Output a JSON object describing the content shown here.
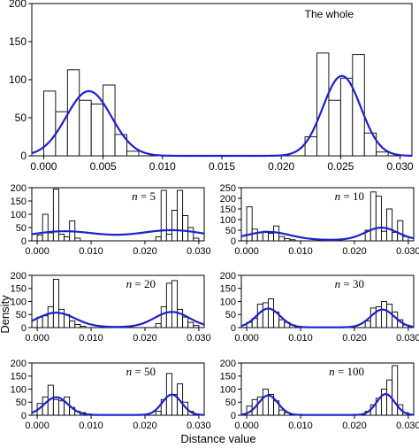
{
  "chart_data": {
    "type": "bar",
    "xlabel": "Distance value",
    "ylabel": "Density",
    "panels": [
      {
        "id": "whole",
        "annotation": {
          "prefix": "",
          "italic": "",
          "text": "The whole"
        },
        "xlim": [
          -0.001,
          0.031
        ],
        "ylim": [
          0,
          200
        ],
        "yticks": [
          0,
          50,
          100,
          150,
          200
        ],
        "xticks": [
          0.0,
          0.005,
          0.01,
          0.015,
          0.02,
          0.025,
          0.03
        ],
        "xtick_labels": [
          "0.000",
          "0.005",
          "0.010",
          "0.015",
          "0.020",
          "0.025",
          "0.030"
        ],
        "bin_width": 0.001,
        "bars": [
          {
            "x": 0.0,
            "y": 85
          },
          {
            "x": 0.001,
            "y": 58
          },
          {
            "x": 0.002,
            "y": 113
          },
          {
            "x": 0.003,
            "y": 73
          },
          {
            "x": 0.004,
            "y": 68
          },
          {
            "x": 0.005,
            "y": 93
          },
          {
            "x": 0.006,
            "y": 28
          },
          {
            "x": 0.007,
            "y": 6
          },
          {
            "x": 0.022,
            "y": 25
          },
          {
            "x": 0.023,
            "y": 135
          },
          {
            "x": 0.024,
            "y": 73
          },
          {
            "x": 0.025,
            "y": 102
          },
          {
            "x": 0.026,
            "y": 133
          },
          {
            "x": 0.027,
            "y": 30
          },
          {
            "x": 0.028,
            "y": 5
          }
        ],
        "density": {
          "peaks": [
            {
              "mu": 0.0038,
              "sd": 0.0019,
              "h": 85
            },
            {
              "mu": 0.0251,
              "sd": 0.0016,
              "h": 105
            }
          ]
        }
      },
      {
        "id": "n5",
        "annotation": {
          "prefix": "",
          "italic": "n",
          "text": " = 5"
        },
        "xlim": [
          -0.001,
          0.031
        ],
        "ylim": [
          0,
          200
        ],
        "yticks": [
          0,
          50,
          100,
          150,
          200
        ],
        "xticks": [
          0.0,
          0.01,
          0.02,
          0.03
        ],
        "xtick_labels": [
          "0.000",
          "0.010",
          "0.020",
          "0.030"
        ],
        "bin_width": 0.001,
        "bars": [
          {
            "x": 0.0,
            "y": 22
          },
          {
            "x": 0.001,
            "y": 100
          },
          {
            "x": 0.002,
            "y": 30
          },
          {
            "x": 0.003,
            "y": 195
          },
          {
            "x": 0.004,
            "y": 25
          },
          {
            "x": 0.005,
            "y": 15
          },
          {
            "x": 0.006,
            "y": 75
          },
          {
            "x": 0.007,
            "y": 10
          },
          {
            "x": 0.022,
            "y": 15
          },
          {
            "x": 0.023,
            "y": 190
          },
          {
            "x": 0.024,
            "y": 25
          },
          {
            "x": 0.025,
            "y": 115
          },
          {
            "x": 0.026,
            "y": 190
          },
          {
            "x": 0.027,
            "y": 95
          },
          {
            "x": 0.028,
            "y": 50
          },
          {
            "x": 0.029,
            "y": 10
          }
        ],
        "density": {
          "peaks": [
            {
              "mu": 0.005,
              "sd": 0.006,
              "h": 28
            },
            {
              "mu": 0.025,
              "sd": 0.006,
              "h": 32
            }
          ],
          "base": 8
        }
      },
      {
        "id": "n10",
        "annotation": {
          "prefix": "",
          "italic": "n",
          "text": " = 10"
        },
        "xlim": [
          -0.001,
          0.031
        ],
        "ylim": [
          0,
          250
        ],
        "yticks": [
          0,
          50,
          100,
          150,
          200,
          250
        ],
        "xticks": [
          0.0,
          0.01,
          0.02,
          0.03
        ],
        "xtick_labels": [
          "0.000",
          "0.010",
          "0.020",
          "0.030"
        ],
        "bin_width": 0.001,
        "bars": [
          {
            "x": 0.0,
            "y": 160
          },
          {
            "x": 0.001,
            "y": 55
          },
          {
            "x": 0.002,
            "y": 40
          },
          {
            "x": 0.003,
            "y": 45
          },
          {
            "x": 0.004,
            "y": 35
          },
          {
            "x": 0.005,
            "y": 70
          },
          {
            "x": 0.006,
            "y": 20
          },
          {
            "x": 0.007,
            "y": 10
          },
          {
            "x": 0.008,
            "y": 5
          },
          {
            "x": 0.022,
            "y": 50
          },
          {
            "x": 0.023,
            "y": 230
          },
          {
            "x": 0.024,
            "y": 210
          },
          {
            "x": 0.025,
            "y": 45
          },
          {
            "x": 0.026,
            "y": 150
          },
          {
            "x": 0.027,
            "y": 40
          },
          {
            "x": 0.028,
            "y": 95
          },
          {
            "x": 0.029,
            "y": 20
          }
        ],
        "density": {
          "peaks": [
            {
              "mu": 0.004,
              "sd": 0.004,
              "h": 38
            },
            {
              "mu": 0.025,
              "sd": 0.003,
              "h": 58
            }
          ],
          "base": 4
        }
      },
      {
        "id": "n20",
        "annotation": {
          "prefix": "",
          "italic": "n",
          "text": " = 20"
        },
        "xlim": [
          -0.001,
          0.031
        ],
        "ylim": [
          0,
          200
        ],
        "yticks": [
          0,
          50,
          100,
          150,
          200
        ],
        "xticks": [
          0.0,
          0.01,
          0.02,
          0.03
        ],
        "xtick_labels": [
          "0.000",
          "0.010",
          "0.020",
          "0.030"
        ],
        "bin_width": 0.001,
        "bars": [
          {
            "x": 0.0,
            "y": 40
          },
          {
            "x": 0.001,
            "y": 45
          },
          {
            "x": 0.002,
            "y": 80
          },
          {
            "x": 0.003,
            "y": 185
          },
          {
            "x": 0.004,
            "y": 70
          },
          {
            "x": 0.005,
            "y": 50
          },
          {
            "x": 0.006,
            "y": 25
          },
          {
            "x": 0.007,
            "y": 12
          },
          {
            "x": 0.008,
            "y": 5
          },
          {
            "x": 0.022,
            "y": 15
          },
          {
            "x": 0.023,
            "y": 80
          },
          {
            "x": 0.024,
            "y": 170
          },
          {
            "x": 0.025,
            "y": 180
          },
          {
            "x": 0.026,
            "y": 70
          },
          {
            "x": 0.027,
            "y": 40
          },
          {
            "x": 0.028,
            "y": 20
          },
          {
            "x": 0.029,
            "y": 8
          }
        ],
        "density": {
          "peaks": [
            {
              "mu": 0.0035,
              "sd": 0.0035,
              "h": 55
            },
            {
              "mu": 0.025,
              "sd": 0.0032,
              "h": 58
            }
          ],
          "base": 2
        }
      },
      {
        "id": "n30",
        "annotation": {
          "prefix": "",
          "italic": "n",
          "text": " = 30"
        },
        "xlim": [
          -0.001,
          0.031
        ],
        "ylim": [
          0,
          200
        ],
        "yticks": [
          0,
          50,
          100,
          150,
          200
        ],
        "xticks": [
          0.0,
          0.01,
          0.02,
          0.03
        ],
        "xtick_labels": [
          "0.000",
          "0.010",
          "0.020",
          "0.030"
        ],
        "bin_width": 0.001,
        "bars": [
          {
            "x": 0.0,
            "y": 20
          },
          {
            "x": 0.001,
            "y": 35
          },
          {
            "x": 0.002,
            "y": 90
          },
          {
            "x": 0.003,
            "y": 95
          },
          {
            "x": 0.004,
            "y": 110
          },
          {
            "x": 0.005,
            "y": 60
          },
          {
            "x": 0.006,
            "y": 30
          },
          {
            "x": 0.007,
            "y": 20
          },
          {
            "x": 0.008,
            "y": 10
          },
          {
            "x": 0.009,
            "y": 5
          },
          {
            "x": 0.022,
            "y": 25
          },
          {
            "x": 0.023,
            "y": 75
          },
          {
            "x": 0.024,
            "y": 80
          },
          {
            "x": 0.025,
            "y": 100
          },
          {
            "x": 0.026,
            "y": 90
          },
          {
            "x": 0.027,
            "y": 60
          },
          {
            "x": 0.028,
            "y": 30
          },
          {
            "x": 0.029,
            "y": 10
          }
        ],
        "density": {
          "peaks": [
            {
              "mu": 0.004,
              "sd": 0.0022,
              "h": 72
            },
            {
              "mu": 0.0252,
              "sd": 0.0022,
              "h": 68
            }
          ],
          "base": 1
        }
      },
      {
        "id": "n50",
        "annotation": {
          "prefix": "",
          "italic": "n",
          "text": " = 50"
        },
        "xlim": [
          -0.001,
          0.031
        ],
        "ylim": [
          0,
          200
        ],
        "yticks": [
          0,
          50,
          100,
          150,
          200
        ],
        "xticks": [
          0.0,
          0.01,
          0.02,
          0.03
        ],
        "xtick_labels": [
          "0.000",
          "0.010",
          "0.020",
          "0.030"
        ],
        "bin_width": 0.001,
        "bars": [
          {
            "x": 0.0,
            "y": 45
          },
          {
            "x": 0.001,
            "y": 70
          },
          {
            "x": 0.002,
            "y": 115
          },
          {
            "x": 0.003,
            "y": 60
          },
          {
            "x": 0.004,
            "y": 55
          },
          {
            "x": 0.005,
            "y": 70
          },
          {
            "x": 0.006,
            "y": 30
          },
          {
            "x": 0.007,
            "y": 15
          },
          {
            "x": 0.008,
            "y": 10
          },
          {
            "x": 0.009,
            "y": 5
          },
          {
            "x": 0.022,
            "y": 15
          },
          {
            "x": 0.023,
            "y": 60
          },
          {
            "x": 0.024,
            "y": 160
          },
          {
            "x": 0.025,
            "y": 80
          },
          {
            "x": 0.026,
            "y": 120
          },
          {
            "x": 0.027,
            "y": 50
          },
          {
            "x": 0.028,
            "y": 15
          }
        ],
        "density": {
          "peaks": [
            {
              "mu": 0.0035,
              "sd": 0.0022,
              "h": 68
            },
            {
              "mu": 0.025,
              "sd": 0.0018,
              "h": 78
            }
          ],
          "base": 1
        }
      },
      {
        "id": "n100",
        "annotation": {
          "prefix": "",
          "italic": "n",
          "text": " = 100"
        },
        "xlim": [
          -0.001,
          0.031
        ],
        "ylim": [
          0,
          200
        ],
        "yticks": [
          0,
          50,
          100,
          150,
          200
        ],
        "xticks": [
          0.0,
          0.01,
          0.02,
          0.03
        ],
        "xtick_labels": [
          "0.000",
          "0.010",
          "0.020",
          "0.030"
        ],
        "bin_width": 0.001,
        "bars": [
          {
            "x": 0.0,
            "y": 35
          },
          {
            "x": 0.001,
            "y": 60
          },
          {
            "x": 0.002,
            "y": 70
          },
          {
            "x": 0.003,
            "y": 100
          },
          {
            "x": 0.004,
            "y": 80
          },
          {
            "x": 0.005,
            "y": 55
          },
          {
            "x": 0.006,
            "y": 20
          },
          {
            "x": 0.007,
            "y": 10
          },
          {
            "x": 0.022,
            "y": 15
          },
          {
            "x": 0.023,
            "y": 40
          },
          {
            "x": 0.024,
            "y": 65
          },
          {
            "x": 0.025,
            "y": 100
          },
          {
            "x": 0.026,
            "y": 135
          },
          {
            "x": 0.027,
            "y": 190
          },
          {
            "x": 0.028,
            "y": 40
          },
          {
            "x": 0.029,
            "y": 10
          }
        ],
        "density": {
          "peaks": [
            {
              "mu": 0.004,
              "sd": 0.0018,
              "h": 75
            },
            {
              "mu": 0.0258,
              "sd": 0.0017,
              "h": 80
            }
          ],
          "base": 1
        }
      }
    ]
  }
}
